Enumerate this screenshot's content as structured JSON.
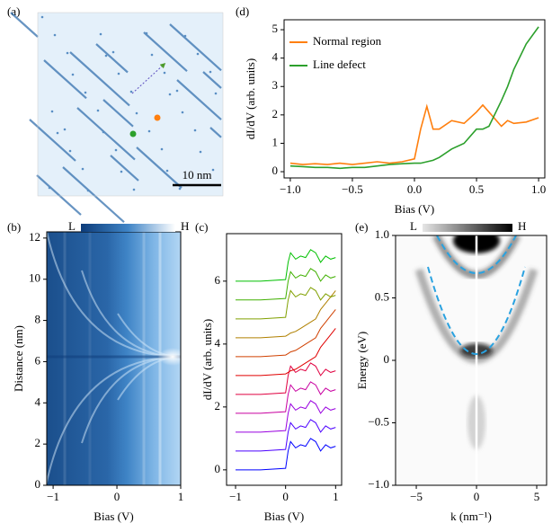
{
  "chart_data": [
    {
      "type": "image",
      "label": "(a)",
      "annotation": "10 nm"
    },
    {
      "type": "line",
      "label": "(d)",
      "x": [
        -1.0,
        -0.9,
        -0.8,
        -0.7,
        -0.6,
        -0.5,
        -0.4,
        -0.3,
        -0.2,
        -0.1,
        0.0,
        0.05,
        0.1,
        0.15,
        0.2,
        0.3,
        0.4,
        0.5,
        0.55,
        0.6,
        0.7,
        0.75,
        0.8,
        0.9,
        1.0
      ],
      "series": [
        {
          "name": "Normal region",
          "color": "#ff7f0e",
          "values": [
            0.3,
            0.25,
            0.28,
            0.25,
            0.3,
            0.25,
            0.3,
            0.35,
            0.3,
            0.35,
            0.45,
            1.5,
            2.3,
            1.5,
            1.5,
            1.8,
            1.7,
            2.1,
            2.35,
            2.1,
            1.6,
            1.8,
            1.7,
            1.75,
            1.9
          ]
        },
        {
          "name": "Line defect",
          "color": "#2ca02c",
          "values": [
            0.2,
            0.18,
            0.15,
            0.15,
            0.12,
            0.15,
            0.15,
            0.2,
            0.25,
            0.28,
            0.3,
            0.3,
            0.35,
            0.4,
            0.5,
            0.8,
            1.0,
            1.5,
            1.5,
            1.6,
            2.5,
            3.0,
            3.6,
            4.5,
            5.1
          ]
        }
      ],
      "xlim": [
        -1.05,
        1.05
      ],
      "xticks": [
        {
          "value": -1,
          "label": "−1.0"
        },
        {
          "value": -0.5,
          "label": "−0.5"
        },
        {
          "value": 0,
          "label": "0.0"
        },
        0.5,
        {
          "value": 1,
          "label": "1.0"
        }
      ],
      "ylim": [
        -0.22,
        5.35
      ],
      "yticks": [
        0,
        1,
        2,
        3,
        4,
        5
      ],
      "xlabel": "Bias (V)",
      "ylabel": "dI/dV (arb. units)",
      "legend": "upper left"
    },
    {
      "type": "heatmap",
      "label": "(b)",
      "colorbar_labels": [
        "L",
        "H"
      ],
      "xlim": [
        -1.1,
        1.0
      ],
      "xticks": [
        {
          "value": -1,
          "label": "−1"
        },
        0,
        1
      ],
      "ylim": [
        0,
        12.3
      ],
      "yticks": [
        0,
        2,
        4,
        6,
        8,
        10,
        12
      ],
      "xlabel": "Bias (V)",
      "ylabel": "Distance (nm)"
    },
    {
      "type": "line",
      "label": "(c)",
      "x": [
        -1.0,
        -0.5,
        0.0,
        0.05,
        0.1,
        0.2,
        0.3,
        0.4,
        0.5,
        0.6,
        0.7,
        0.8,
        0.9,
        1.0
      ],
      "series": [
        {
          "color": "#0000ff",
          "values": [
            0,
            0,
            0.05,
            0.6,
            0.9,
            0.7,
            0.8,
            0.75,
            1,
            0.9,
            0.6,
            0.8,
            0.7,
            0.75
          ]
        },
        {
          "color": "#4b00ff",
          "values": [
            0.6,
            0.6,
            0.65,
            1.2,
            1.5,
            1.3,
            1.4,
            1.35,
            1.6,
            1.5,
            1.2,
            1.4,
            1.3,
            1.35
          ]
        },
        {
          "color": "#9900e0",
          "values": [
            1.2,
            1.2,
            1.25,
            1.8,
            2.1,
            1.9,
            2,
            1.95,
            2.2,
            2.1,
            1.8,
            2,
            1.9,
            1.95
          ]
        },
        {
          "color": "#c800a0",
          "values": [
            1.8,
            1.8,
            1.85,
            2.4,
            2.7,
            2.5,
            2.6,
            2.55,
            2.8,
            2.7,
            2.4,
            2.6,
            2.5,
            2.55
          ]
        },
        {
          "color": "#e00040",
          "values": [
            2.4,
            2.4,
            2.45,
            3,
            3.3,
            3.1,
            3.2,
            3.15,
            3.4,
            3.3,
            3,
            3.2,
            3.1,
            3.15
          ]
        },
        {
          "color": "#e00000",
          "values": [
            3,
            3,
            3.05,
            3.1,
            3.15,
            3.2,
            3.3,
            3.4,
            3.5,
            3.6,
            3.9,
            4.1,
            4.3,
            4.5
          ]
        },
        {
          "color": "#d04000",
          "values": [
            3.6,
            3.6,
            3.65,
            3.7,
            3.75,
            3.8,
            3.9,
            4,
            4.1,
            4.2,
            4.5,
            4.7,
            4.9,
            5.1
          ]
        },
        {
          "color": "#b08000",
          "values": [
            4.2,
            4.2,
            4.25,
            4.3,
            4.35,
            4.4,
            4.5,
            4.6,
            4.7,
            4.8,
            5.1,
            5.3,
            5.5,
            5.7
          ]
        },
        {
          "color": "#80a000",
          "values": [
            4.8,
            4.8,
            4.85,
            5.4,
            5.7,
            5.5,
            5.6,
            5.55,
            5.8,
            5.7,
            5.4,
            5.6,
            5.5,
            5.55
          ]
        },
        {
          "color": "#40b000",
          "values": [
            5.4,
            5.4,
            5.45,
            6,
            6.3,
            6.1,
            6.2,
            6.15,
            6.4,
            6.3,
            6,
            6.2,
            6.1,
            6.15
          ]
        },
        {
          "color": "#00c000",
          "values": [
            6,
            6,
            6.05,
            6.6,
            6.9,
            6.7,
            6.8,
            6.75,
            7,
            6.9,
            6.6,
            6.8,
            6.7,
            6.75
          ]
        }
      ],
      "xlim": [
        -1.18,
        1.12
      ],
      "xticks": [
        {
          "value": -1,
          "label": "−1"
        },
        0,
        1
      ],
      "ylim": [
        -0.49,
        7.51
      ],
      "yticks": [
        0,
        2,
        4,
        6
      ],
      "xlabel": "Bias (V)",
      "ylabel": "dI/dV (arb. units)"
    },
    {
      "type": "heatmap",
      "label": "(e)",
      "colorbar_labels": [
        "L",
        "H"
      ],
      "xlim": [
        -6.72,
        5.82
      ],
      "xticks": [
        {
          "value": -5,
          "label": "−5"
        },
        0,
        5
      ],
      "ylim": [
        -1,
        1
      ],
      "yticks": [
        {
          "value": -1,
          "label": "−1.0"
        },
        {
          "value": -0.5,
          "label": "−0.5"
        },
        0,
        0.5,
        {
          "value": 1,
          "label": "1.0"
        }
      ],
      "xlabel": "k (nm⁻¹)",
      "ylabel": "Energy (eV)"
    }
  ]
}
